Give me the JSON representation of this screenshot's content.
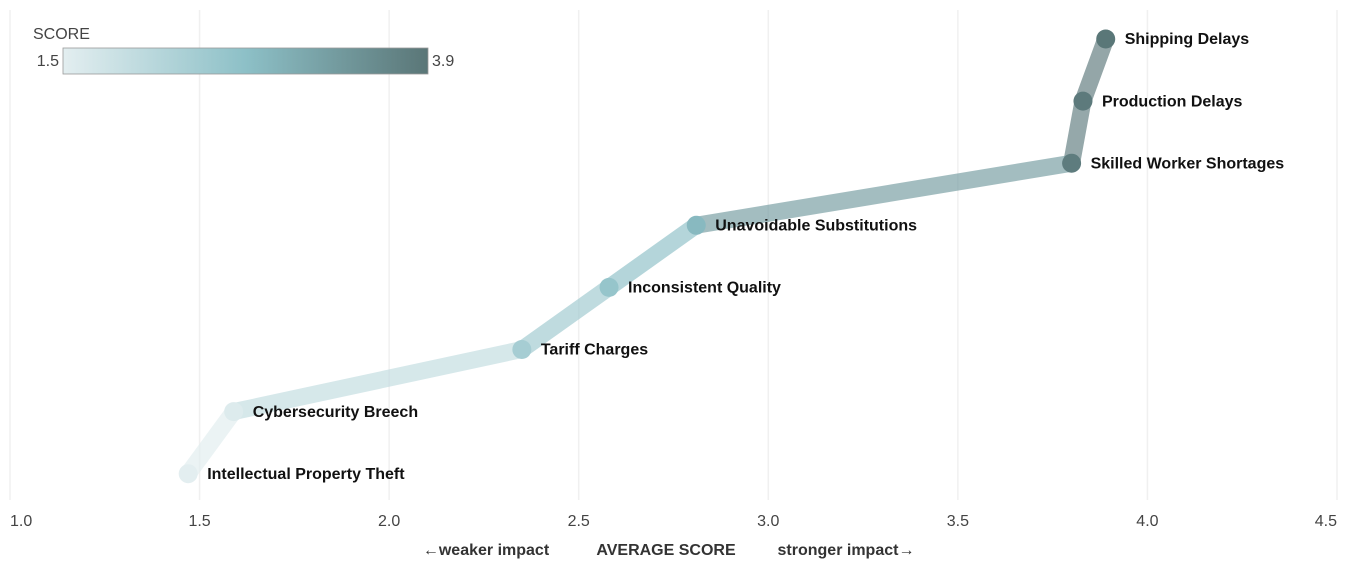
{
  "chart_data": {
    "type": "line",
    "categories": [
      "Shipping Delays",
      "Production Delays",
      "Skilled Worker Shortages",
      "Unavoidable Substitutions",
      "Inconsistent Quality",
      "Tariff Charges",
      "Cybersecurity Breech",
      "Intellectual Property Theft"
    ],
    "values": [
      3.89,
      3.83,
      3.8,
      2.81,
      2.58,
      2.35,
      1.59,
      1.47
    ],
    "xlim": [
      1,
      4.5
    ],
    "xticks": [
      {
        "value": 1,
        "label": "1.0"
      },
      1.5,
      {
        "value": 2,
        "label": "2.0"
      },
      2.5,
      {
        "value": 3,
        "label": "3.0"
      },
      3.5,
      {
        "value": 4,
        "label": "4.0"
      },
      4.5
    ],
    "x_label": "AVERAGE SCORE",
    "annotations": [
      "←weaker impact",
      "stronger impact→"
    ],
    "grid": true,
    "color_scale": {
      "title": "SCORE",
      "min": 1.5,
      "max": 3.9,
      "colors": [
        "#e3eef0",
        "#8dc0c7",
        "#5a7677"
      ]
    }
  }
}
